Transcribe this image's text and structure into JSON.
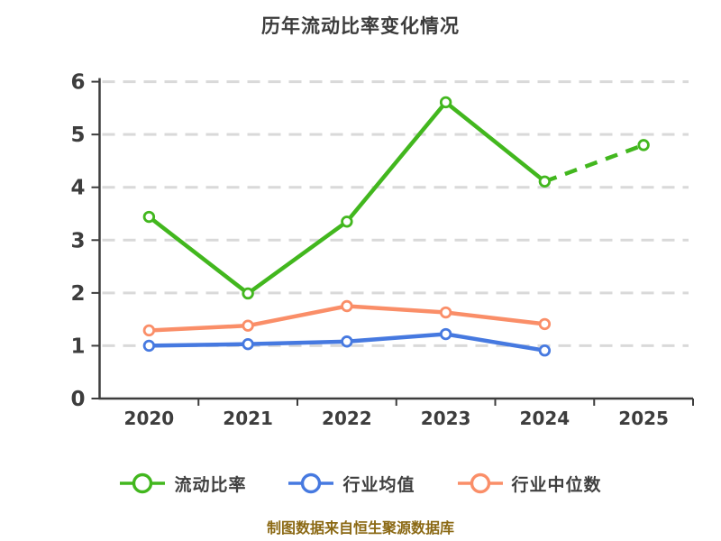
{
  "page": {
    "title": "历年流动比率变化情况",
    "caption": "制图数据来自恒生聚源数据库"
  },
  "chart_data": {
    "type": "line",
    "title": "历年流动比率变化情况",
    "caption": "制图数据来自恒生聚源数据库",
    "categories": [
      "2020",
      "2021",
      "2022",
      "2023",
      "2024",
      "2025"
    ],
    "series": [
      {
        "name": "流动比率",
        "color": "#42b71e",
        "values": [
          3.44,
          1.99,
          3.35,
          5.61,
          4.11,
          4.8
        ],
        "dashed_from_index": 4
      },
      {
        "name": "行业均值",
        "color": "#4679e0",
        "values": [
          1.0,
          1.03,
          1.08,
          1.22,
          0.91
        ]
      },
      {
        "name": "行业中位数",
        "color": "#fa8e68",
        "values": [
          1.29,
          1.38,
          1.75,
          1.63,
          1.41
        ]
      }
    ],
    "yticks": [
      0,
      1,
      2,
      3,
      4,
      5,
      6
    ],
    "ylim": [
      0,
      6
    ],
    "xlabel": "",
    "ylabel": "",
    "grid": "horizontal-dashed",
    "legend_position": "bottom",
    "marker": "circle-white-fill",
    "colors": {
      "axis": "#3d3d3d",
      "tick_text": "#3d3d3d",
      "gridline": "#d9d9d9",
      "title_text": "#3c3c3c",
      "caption_text": "#8b6914"
    }
  }
}
